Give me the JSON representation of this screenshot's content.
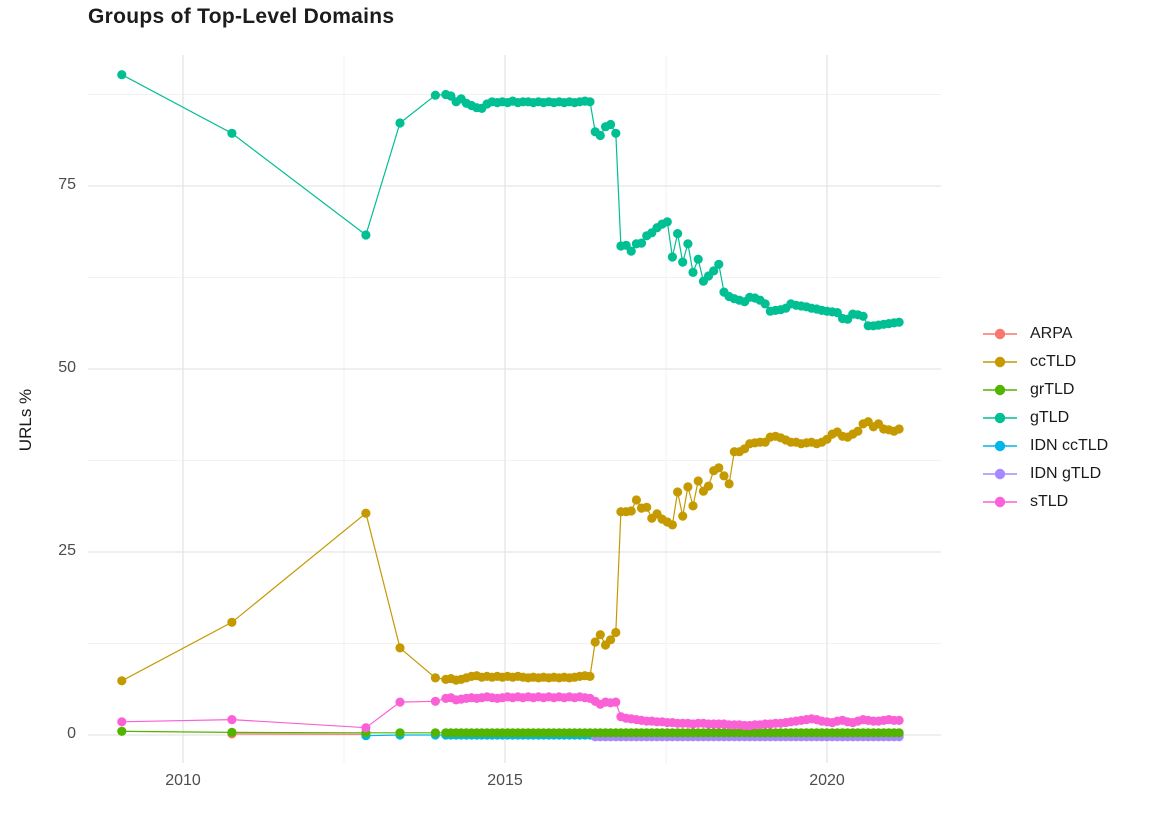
{
  "title": "Groups of Top-Level Domains",
  "colors": {
    "grid_major": "#E5E5E5",
    "grid_minor": "#F2F2F2",
    "title_text": "#1C1C1C",
    "tick_text": "#4D4D4D"
  },
  "chart_data": {
    "type": "scatter-line",
    "title": "Groups of Top-Level Domains",
    "xlabel": "",
    "ylabel": "URLs %",
    "grid": true,
    "legend_position": "right",
    "xlim": [
      2008.52,
      2021.77
    ],
    "ylim": [
      -3.8,
      92.9
    ],
    "x_ticks": [
      2010,
      2015,
      2020
    ],
    "x_minor_ticks": [
      2012.5,
      2017.5
    ],
    "y_ticks": [
      0,
      25,
      50,
      75
    ],
    "y_minor_ticks": [
      12.5,
      37.5,
      62.5,
      87.5
    ],
    "legend_items": [
      "ARPA",
      "ccTLD",
      "grTLD",
      "gTLD",
      "IDN ccTLD",
      "IDN gTLD",
      "sTLD"
    ],
    "x_mid": [
      2014.08,
      2014.16,
      2014.24,
      2014.32,
      2014.4,
      2014.48,
      2014.56,
      2014.64,
      2014.72,
      2014.8,
      2014.88,
      2014.96,
      2015.04,
      2015.12,
      2015.2,
      2015.28,
      2015.36,
      2015.44,
      2015.52,
      2015.6,
      2015.68,
      2015.76,
      2015.84,
      2015.92,
      2016.0,
      2016.08,
      2016.16,
      2016.24,
      2016.32
    ],
    "x_dense": [
      2016.4,
      2016.48,
      2016.56,
      2016.64,
      2016.72,
      2016.8,
      2016.88,
      2016.96,
      2017.04,
      2017.12,
      2017.2,
      2017.28,
      2017.36,
      2017.44,
      2017.52,
      2017.6,
      2017.68,
      2017.76,
      2017.84,
      2017.92,
      2018.0,
      2018.08,
      2018.16,
      2018.24,
      2018.32,
      2018.4,
      2018.48,
      2018.56,
      2018.64,
      2018.72,
      2018.8,
      2018.88,
      2018.96,
      2019.04,
      2019.12,
      2019.2,
      2019.28,
      2019.36,
      2019.44,
      2019.52,
      2019.6,
      2019.68,
      2019.76,
      2019.84,
      2019.92,
      2020.0,
      2020.08,
      2020.16,
      2020.24,
      2020.32,
      2020.4,
      2020.48,
      2020.56,
      2020.64,
      2020.72,
      2020.8,
      2020.88,
      2020.96,
      2021.04,
      2021.12
    ],
    "series": [
      {
        "name": "ARPA",
        "color": "#F8766D",
        "sparse_x": [
          2010.76,
          2012.84
        ],
        "sparse_y": [
          0.15,
          0.1
        ]
      },
      {
        "name": "IDN ccTLD",
        "color": "#00B6EB",
        "sparse_x": [
          2012.84,
          2013.37,
          2013.92
        ],
        "sparse_y": [
          -0.1,
          0.0,
          0.0
        ],
        "mid_const": 0.0,
        "dense_const": 0.0
      },
      {
        "name": "IDN gTLD",
        "color": "#A58AFF",
        "dense_const": -0.25
      },
      {
        "name": "grTLD",
        "color": "#53B400",
        "sparse_x": [
          2009.05,
          2010.76,
          2012.84,
          2013.37,
          2013.92
        ],
        "sparse_y": [
          0.5,
          0.35,
          0.3,
          0.3,
          0.3
        ],
        "mid_const": 0.3,
        "dense_const": 0.3
      },
      {
        "name": "sTLD",
        "color": "#FB61D7",
        "sparse_x": [
          2009.05,
          2010.76,
          2012.84,
          2013.37,
          2013.92
        ],
        "sparse_y": [
          1.8,
          2.1,
          1.0,
          4.5,
          4.6
        ],
        "mid_y": [
          5.0,
          5.1,
          4.8,
          4.9,
          5.0,
          5.1,
          5.0,
          5.1,
          5.2,
          5.1,
          5.0,
          5.1,
          5.2,
          5.1,
          5.2,
          5.1,
          5.2,
          5.1,
          5.2,
          5.1,
          5.2,
          5.1,
          5.2,
          5.1,
          5.2,
          5.1,
          5.2,
          5.1,
          5.0
        ],
        "dense_y": [
          4.6,
          4.2,
          4.5,
          4.4,
          4.5,
          2.5,
          2.3,
          2.2,
          2.1,
          2.0,
          1.9,
          1.9,
          1.8,
          1.8,
          1.7,
          1.7,
          1.6,
          1.6,
          1.6,
          1.5,
          1.6,
          1.6,
          1.5,
          1.5,
          1.5,
          1.5,
          1.4,
          1.4,
          1.4,
          1.3,
          1.3,
          1.4,
          1.4,
          1.5,
          1.5,
          1.6,
          1.6,
          1.7,
          1.8,
          1.9,
          2.0,
          2.1,
          2.2,
          2.1,
          1.9,
          1.8,
          1.7,
          1.9,
          2.0,
          1.8,
          1.7,
          1.9,
          2.1,
          2.0,
          1.9,
          1.9,
          2.0,
          2.1,
          2.0,
          2.0
        ]
      },
      {
        "name": "ccTLD",
        "color": "#C49A00",
        "sparse_x": [
          2009.05,
          2010.76,
          2012.84,
          2013.37,
          2013.92
        ],
        "sparse_y": [
          7.4,
          15.4,
          30.3,
          11.9,
          7.8
        ],
        "mid_y": [
          7.6,
          7.7,
          7.5,
          7.6,
          7.8,
          8.0,
          8.1,
          7.9,
          8.0,
          7.9,
          8.0,
          7.9,
          8.0,
          7.9,
          8.0,
          7.9,
          7.8,
          7.9,
          7.8,
          7.9,
          7.8,
          7.9,
          7.8,
          7.9,
          7.8,
          7.9,
          8.0,
          8.1,
          8.0
        ],
        "dense_y": [
          12.7,
          13.7,
          12.3,
          13.0,
          14.0,
          30.5,
          30.5,
          30.6,
          32.1,
          31.0,
          31.1,
          29.6,
          30.2,
          29.5,
          29.1,
          28.7,
          33.2,
          29.9,
          33.9,
          31.3,
          34.7,
          33.3,
          34.0,
          36.1,
          36.5,
          35.4,
          34.3,
          38.7,
          38.7,
          39.1,
          39.8,
          39.9,
          40.0,
          40.0,
          40.7,
          40.8,
          40.6,
          40.3,
          40.0,
          40.0,
          39.8,
          39.9,
          40.0,
          39.8,
          40.0,
          40.4,
          41.1,
          41.4,
          40.8,
          40.7,
          41.1,
          41.5,
          42.5,
          42.8,
          42.1,
          42.5,
          41.8,
          41.7,
          41.5,
          41.8
        ]
      },
      {
        "name": "gTLD",
        "color": "#00BF92",
        "sparse_x": [
          2009.05,
          2010.76,
          2012.84,
          2013.37,
          2013.92
        ],
        "sparse_y": [
          90.2,
          82.2,
          68.3,
          83.6,
          87.4
        ],
        "mid_y": [
          87.5,
          87.3,
          86.5,
          86.9,
          86.3,
          86.0,
          85.7,
          85.6,
          86.2,
          86.5,
          86.4,
          86.5,
          86.4,
          86.6,
          86.4,
          86.5,
          86.5,
          86.4,
          86.5,
          86.4,
          86.5,
          86.4,
          86.5,
          86.4,
          86.5,
          86.4,
          86.5,
          86.6,
          86.5
        ],
        "dense_y": [
          82.4,
          81.9,
          83.1,
          83.4,
          82.2,
          66.8,
          66.9,
          66.1,
          67.1,
          67.2,
          68.2,
          68.6,
          69.3,
          69.8,
          70.1,
          65.3,
          68.5,
          64.6,
          67.1,
          63.2,
          65.0,
          62.0,
          62.7,
          63.4,
          64.3,
          60.5,
          59.9,
          59.6,
          59.4,
          59.2,
          59.8,
          59.7,
          59.4,
          58.9,
          57.9,
          58.0,
          58.1,
          58.3,
          58.9,
          58.7,
          58.6,
          58.5,
          58.3,
          58.2,
          58.0,
          57.9,
          57.8,
          57.7,
          56.9,
          56.8,
          57.5,
          57.4,
          57.2,
          55.9,
          55.9,
          56.0,
          56.1,
          56.2,
          56.3,
          56.4
        ]
      }
    ]
  }
}
